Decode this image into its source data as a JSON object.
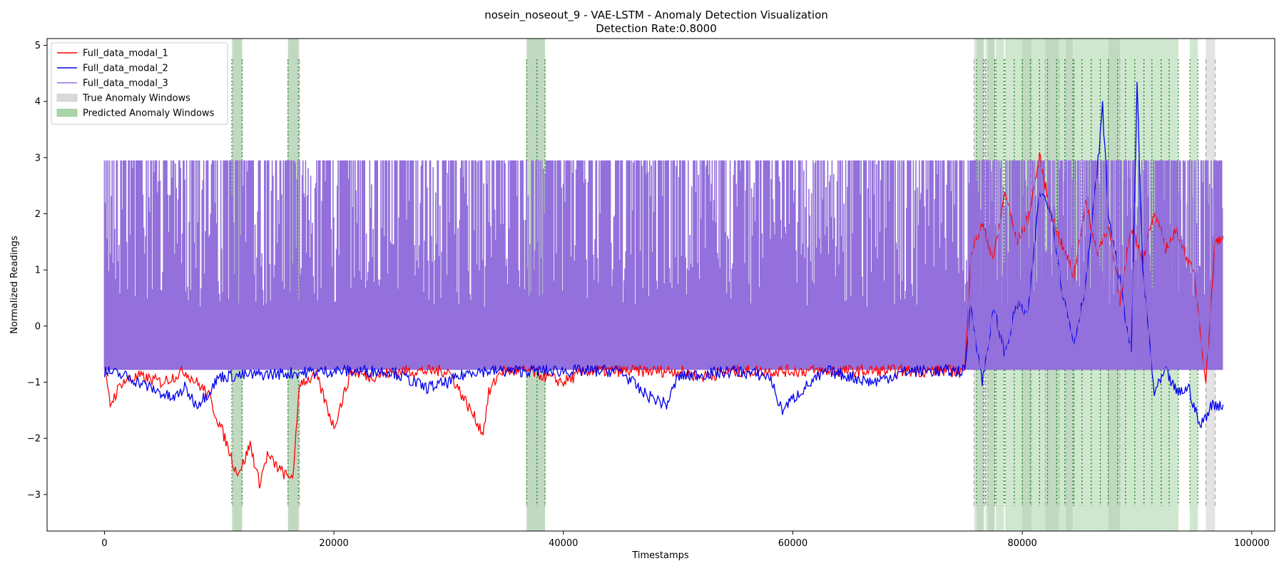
{
  "chart_data": {
    "type": "line",
    "title": "nosein_noseout_9 - VAE-LSTM - Anomaly Detection Visualization",
    "subtitle": "Detection Rate:0.8000",
    "xlabel": "Timestamps",
    "ylabel": "Normalized Readings",
    "xlim": [
      -5000,
      102000
    ],
    "ylim": [
      -3.65,
      5.12
    ],
    "xticks": [
      0,
      20000,
      40000,
      60000,
      80000,
      100000
    ],
    "xtick_labels": [
      "0",
      "20000",
      "40000",
      "60000",
      "80000",
      "100000"
    ],
    "yticks": [
      -3,
      -2,
      -1,
      0,
      1,
      2,
      3,
      4,
      5
    ],
    "ytick_labels": [
      "−3",
      "−2",
      "−1",
      "0",
      "1",
      "2",
      "3",
      "4",
      "5"
    ],
    "grid": false,
    "legend_position": "top-left",
    "legend": [
      {
        "label": "Full_data_modal_1",
        "kind": "line",
        "color": "#ff0000"
      },
      {
        "label": "Full_data_modal_2",
        "kind": "line",
        "color": "#0000ee"
      },
      {
        "label": "Full_data_modal_3",
        "kind": "line",
        "color": "#9370db"
      },
      {
        "label": "True Anomaly Windows",
        "kind": "patch",
        "color": "#d9d9d9"
      },
      {
        "label": "Predicted Anomaly Windows",
        "kind": "patch",
        "color": "#a9d6a9"
      }
    ],
    "series": [
      {
        "name": "Full_data_modal_1",
        "color": "#ff0000",
        "x": [
          0,
          500,
          1500,
          3000,
          5000,
          7000,
          9000,
          10500,
          11500,
          12000,
          12700,
          13500,
          14200,
          15000,
          16000,
          16500,
          17000,
          18500,
          20000,
          21500,
          23000,
          26000,
          30000,
          33000,
          33500,
          34500,
          37000,
          40000,
          42000,
          45000,
          50000,
          52000,
          55000,
          60000,
          65000,
          70000,
          75000,
          75500,
          76500,
          77500,
          78500,
          79500,
          80500,
          81500,
          82500,
          83500,
          84500,
          85500,
          86500,
          87500,
          88500,
          89500,
          90500,
          91500,
          92500,
          93500,
          94500,
          95000,
          96000,
          96800,
          97500
        ],
        "values": [
          -0.8,
          -1.4,
          -1.0,
          -0.9,
          -1.0,
          -0.8,
          -1.2,
          -2.0,
          -2.6,
          -2.5,
          -2.1,
          -2.8,
          -2.3,
          -2.5,
          -2.7,
          -2.6,
          -1.0,
          -0.9,
          -1.8,
          -0.8,
          -0.9,
          -0.8,
          -0.8,
          -1.9,
          -1.2,
          -0.8,
          -0.8,
          -1.0,
          -0.8,
          -0.8,
          -0.8,
          -0.9,
          -0.8,
          -0.8,
          -0.8,
          -0.8,
          -0.8,
          1.3,
          1.8,
          1.2,
          2.4,
          1.5,
          1.9,
          3.0,
          2.0,
          1.4,
          0.9,
          2.2,
          1.3,
          1.8,
          0.4,
          1.8,
          1.2,
          2.0,
          1.4,
          1.7,
          1.1,
          0.9,
          -1.0,
          1.5,
          1.6
        ]
      },
      {
        "name": "Full_data_modal_2",
        "color": "#0000ee",
        "x": [
          0,
          2000,
          3000,
          4000,
          5000,
          6000,
          7000,
          8000,
          9000,
          10000,
          20000,
          25000,
          28000,
          30000,
          32000,
          35000,
          40000,
          45000,
          47000,
          49000,
          50000,
          55000,
          58000,
          59000,
          61000,
          63000,
          65000,
          67000,
          70000,
          75000,
          75500,
          76500,
          77500,
          78500,
          79500,
          80500,
          81500,
          82500,
          83500,
          84500,
          85500,
          86500,
          87000,
          87500,
          88500,
          89500,
          90000,
          90500,
          91500,
          92500,
          93500,
          94500,
          95500,
          96500,
          97500
        ],
        "values": [
          -0.8,
          -0.9,
          -1.0,
          -1.1,
          -1.2,
          -1.3,
          -1.1,
          -1.4,
          -1.2,
          -0.9,
          -0.8,
          -0.8,
          -1.1,
          -1.0,
          -0.8,
          -0.8,
          -0.8,
          -0.8,
          -1.2,
          -1.4,
          -0.9,
          -0.8,
          -0.9,
          -1.5,
          -1.1,
          -0.8,
          -0.9,
          -1.0,
          -0.8,
          -0.8,
          0.4,
          -1.0,
          0.3,
          -0.5,
          0.4,
          0.2,
          2.4,
          2.1,
          0.6,
          -0.3,
          0.7,
          2.7,
          3.9,
          2.0,
          0.8,
          -0.5,
          4.3,
          1.0,
          -1.2,
          -0.8,
          -1.2,
          -1.1,
          -1.8,
          -1.4,
          -1.4
        ]
      },
      {
        "name": "Full_data_modal_3",
        "color": "#9370db",
        "band_min": -0.78,
        "band_max": 2.95,
        "x_start": 0,
        "x_end": 97500
      }
    ],
    "true_anomaly_windows": [
      [
        11200,
        12000
      ],
      [
        16000,
        17000
      ],
      [
        36800,
        38400
      ],
      [
        75800,
        76700
      ],
      [
        77000,
        77600
      ],
      [
        80000,
        80800
      ],
      [
        82000,
        83200
      ],
      [
        83800,
        84500
      ],
      [
        87500,
        88500
      ],
      [
        96000,
        96800
      ]
    ],
    "predicted_anomaly_windows": [
      [
        11100,
        12000
      ],
      [
        16000,
        16900
      ],
      [
        36800,
        37700
      ],
      [
        37700,
        38400
      ],
      [
        76000,
        76600
      ],
      [
        76800,
        77600
      ],
      [
        77700,
        78400
      ],
      [
        78500,
        79300
      ],
      [
        79300,
        80000
      ],
      [
        80000,
        80700
      ],
      [
        80700,
        81500
      ],
      [
        81500,
        82200
      ],
      [
        82200,
        83000
      ],
      [
        83000,
        83700
      ],
      [
        83700,
        84400
      ],
      [
        84500,
        85200
      ],
      [
        85200,
        86000
      ],
      [
        86000,
        86800
      ],
      [
        86800,
        87500
      ],
      [
        87500,
        88300
      ],
      [
        88300,
        89000
      ],
      [
        89000,
        89800
      ],
      [
        89800,
        90600
      ],
      [
        90600,
        91300
      ],
      [
        91300,
        92100
      ],
      [
        92100,
        92800
      ],
      [
        92800,
        93600
      ],
      [
        94600,
        95300
      ]
    ]
  }
}
